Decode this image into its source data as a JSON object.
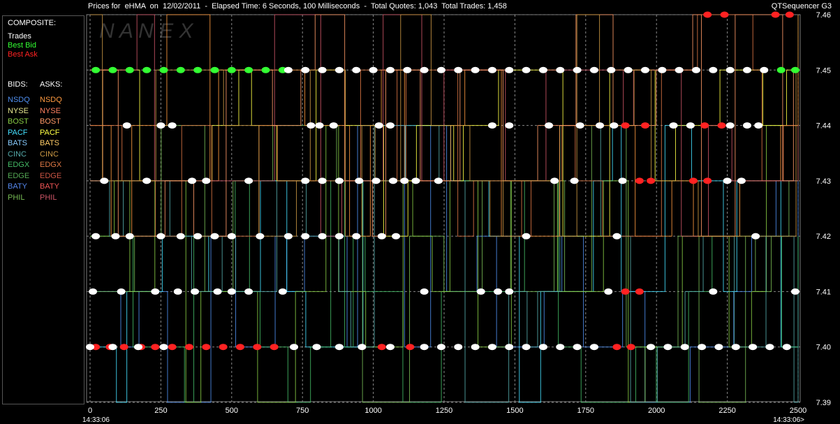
{
  "header": {
    "title": "Prices for  eHMA  on  12/02/2011  -  Elapsed Time: 6 Seconds, 100 Milliseconds  -  Total Quotes: 1,043  Total Trades: 1,458",
    "brand": "QTSequencer G3",
    "watermark": "N A N E X"
  },
  "legend": {
    "composite_heading": "COMPOSITE:",
    "composite": [
      {
        "label": "Trades",
        "color": "#ffffff"
      },
      {
        "label": "Best Bid",
        "color": "#33ff33"
      },
      {
        "label": "Best Ask",
        "color": "#ff2222"
      }
    ],
    "bids_heading": "BIDS:",
    "asks_heading": "ASKS:",
    "exchanges": [
      {
        "bid": "NSDQ",
        "ask": "NSDQ",
        "bid_color": "#4f8ff0",
        "ask_color": "#ff9a40"
      },
      {
        "bid": "NYSE",
        "ask": "NYSE",
        "bid_color": "#e8e890",
        "ask_color": "#ff8060"
      },
      {
        "bid": "BOST",
        "ask": "BOST",
        "bid_color": "#88cc44",
        "ask_color": "#ff9966"
      },
      {
        "bid": "PACF",
        "ask": "PACF",
        "bid_color": "#44e0ff",
        "ask_color": "#ffff44"
      },
      {
        "bid": "BATS",
        "ask": "BATS",
        "bid_color": "#88ccff",
        "ask_color": "#ffcc66"
      },
      {
        "bid": "CINC",
        "ask": "CINC",
        "bid_color": "#55aaaa",
        "ask_color": "#cc9944"
      },
      {
        "bid": "EDGX",
        "ask": "EDGX",
        "bid_color": "#44bb66",
        "ask_color": "#dd7744"
      },
      {
        "bid": "EDGE",
        "ask": "EDGE",
        "bid_color": "#55aa55",
        "ask_color": "#cc5544"
      },
      {
        "bid": "BATY",
        "ask": "BATY",
        "bid_color": "#5588ee",
        "ask_color": "#ee5555"
      },
      {
        "bid": "PHIL",
        "ask": "PHIL",
        "bid_color": "#77bb55",
        "ask_color": "#cc5566"
      }
    ]
  },
  "chart_data": {
    "type": "scatter",
    "x_ticks": [
      "0",
      "250",
      "500",
      "750",
      "1000",
      "1250",
      "1500",
      "1750",
      "2000",
      "2250",
      "2500"
    ],
    "x_tick_values": [
      0,
      250,
      500,
      750,
      1000,
      1250,
      1500,
      1750,
      2000,
      2250,
      2500
    ],
    "y_ticks": [
      "7.46",
      "7.45",
      "7.44",
      "7.43",
      "7.42",
      "7.41",
      "7.40",
      "7.39"
    ],
    "y_tick_values": [
      7.46,
      7.45,
      7.44,
      7.43,
      7.42,
      7.41,
      7.4,
      7.39
    ],
    "xlim": [
      0,
      2500
    ],
    "ylim": [
      7.39,
      7.46
    ],
    "x_start_time": "14:33:06",
    "x_end_time": "14:33:06>",
    "grid": true,
    "series": [
      {
        "name": "Best Bid",
        "color": "#33ff33",
        "points": [
          [
            20,
            7.45
          ],
          [
            80,
            7.45
          ],
          [
            140,
            7.45
          ],
          [
            200,
            7.45
          ],
          [
            260,
            7.45
          ],
          [
            320,
            7.45
          ],
          [
            380,
            7.45
          ],
          [
            440,
            7.45
          ],
          [
            500,
            7.45
          ],
          [
            560,
            7.45
          ],
          [
            620,
            7.45
          ],
          [
            680,
            7.45
          ],
          [
            2440,
            7.45
          ],
          [
            2490,
            7.45
          ]
        ]
      },
      {
        "name": "Best Ask",
        "color": "#ff2222",
        "points": [
          [
            20,
            7.4
          ],
          [
            70,
            7.4
          ],
          [
            120,
            7.4
          ],
          [
            180,
            7.4
          ],
          [
            230,
            7.4
          ],
          [
            290,
            7.4
          ],
          [
            350,
            7.4
          ],
          [
            410,
            7.4
          ],
          [
            470,
            7.4
          ],
          [
            530,
            7.4
          ],
          [
            590,
            7.4
          ],
          [
            650,
            7.4
          ],
          [
            1030,
            7.4
          ],
          [
            1130,
            7.4
          ],
          [
            1940,
            7.43
          ],
          [
            1980,
            7.43
          ],
          [
            1890,
            7.44
          ],
          [
            1960,
            7.44
          ],
          [
            1890,
            7.41
          ],
          [
            1940,
            7.41
          ],
          [
            2170,
            7.44
          ],
          [
            2230,
            7.44
          ],
          [
            2130,
            7.43
          ],
          [
            2180,
            7.43
          ],
          [
            2180,
            7.46
          ],
          [
            2240,
            7.46
          ],
          [
            2420,
            7.46
          ],
          [
            2470,
            7.46
          ],
          [
            1860,
            7.4
          ],
          [
            1910,
            7.4
          ]
        ]
      },
      {
        "name": "Trades",
        "color": "#ffffff",
        "points": [
          [
            700,
            7.45
          ],
          [
            760,
            7.45
          ],
          [
            820,
            7.45
          ],
          [
            880,
            7.45
          ],
          [
            940,
            7.45
          ],
          [
            1000,
            7.45
          ],
          [
            1060,
            7.45
          ],
          [
            1120,
            7.45
          ],
          [
            1180,
            7.45
          ],
          [
            1240,
            7.45
          ],
          [
            1300,
            7.45
          ],
          [
            1360,
            7.45
          ],
          [
            1420,
            7.45
          ],
          [
            1480,
            7.45
          ],
          [
            1540,
            7.45
          ],
          [
            1600,
            7.45
          ],
          [
            1660,
            7.45
          ],
          [
            1720,
            7.45
          ],
          [
            1780,
            7.45
          ],
          [
            1840,
            7.45
          ],
          [
            1900,
            7.45
          ],
          [
            1960,
            7.45
          ],
          [
            2020,
            7.45
          ],
          [
            2080,
            7.45
          ],
          [
            2140,
            7.45
          ],
          [
            2200,
            7.45
          ],
          [
            2260,
            7.45
          ],
          [
            2320,
            7.45
          ],
          [
            2380,
            7.45
          ],
          [
            130,
            7.44
          ],
          [
            250,
            7.44
          ],
          [
            290,
            7.44
          ],
          [
            780,
            7.44
          ],
          [
            810,
            7.44
          ],
          [
            860,
            7.44
          ],
          [
            1020,
            7.44
          ],
          [
            1060,
            7.44
          ],
          [
            1420,
            7.44
          ],
          [
            1480,
            7.44
          ],
          [
            1620,
            7.44
          ],
          [
            1730,
            7.44
          ],
          [
            1800,
            7.44
          ],
          [
            1850,
            7.44
          ],
          [
            2060,
            7.44
          ],
          [
            2120,
            7.44
          ],
          [
            2260,
            7.44
          ],
          [
            2320,
            7.44
          ],
          [
            2360,
            7.44
          ],
          [
            50,
            7.43
          ],
          [
            200,
            7.43
          ],
          [
            360,
            7.43
          ],
          [
            410,
            7.43
          ],
          [
            560,
            7.43
          ],
          [
            760,
            7.43
          ],
          [
            820,
            7.43
          ],
          [
            880,
            7.43
          ],
          [
            950,
            7.43
          ],
          [
            1010,
            7.43
          ],
          [
            1070,
            7.43
          ],
          [
            1110,
            7.43
          ],
          [
            1150,
            7.43
          ],
          [
            1230,
            7.43
          ],
          [
            1640,
            7.43
          ],
          [
            1710,
            7.43
          ],
          [
            1880,
            7.43
          ],
          [
            2250,
            7.43
          ],
          [
            2300,
            7.43
          ],
          [
            20,
            7.42
          ],
          [
            90,
            7.42
          ],
          [
            140,
            7.42
          ],
          [
            250,
            7.42
          ],
          [
            320,
            7.42
          ],
          [
            380,
            7.42
          ],
          [
            440,
            7.42
          ],
          [
            500,
            7.42
          ],
          [
            600,
            7.42
          ],
          [
            700,
            7.42
          ],
          [
            760,
            7.42
          ],
          [
            820,
            7.42
          ],
          [
            880,
            7.42
          ],
          [
            940,
            7.42
          ],
          [
            1030,
            7.42
          ],
          [
            1080,
            7.42
          ],
          [
            1540,
            7.42
          ],
          [
            1860,
            7.42
          ],
          [
            2350,
            7.42
          ],
          [
            10,
            7.41
          ],
          [
            110,
            7.41
          ],
          [
            230,
            7.41
          ],
          [
            310,
            7.41
          ],
          [
            370,
            7.41
          ],
          [
            450,
            7.41
          ],
          [
            500,
            7.41
          ],
          [
            560,
            7.41
          ],
          [
            680,
            7.41
          ],
          [
            1180,
            7.41
          ],
          [
            1380,
            7.41
          ],
          [
            1440,
            7.41
          ],
          [
            1480,
            7.41
          ],
          [
            1830,
            7.41
          ],
          [
            2200,
            7.41
          ],
          [
            2490,
            7.41
          ],
          [
            0,
            7.4
          ],
          [
            80,
            7.4
          ],
          [
            170,
            7.4
          ],
          [
            260,
            7.4
          ],
          [
            720,
            7.4
          ],
          [
            800,
            7.4
          ],
          [
            880,
            7.4
          ],
          [
            960,
            7.4
          ],
          [
            1060,
            7.4
          ],
          [
            1180,
            7.4
          ],
          [
            1240,
            7.4
          ],
          [
            1300,
            7.4
          ],
          [
            1360,
            7.4
          ],
          [
            1420,
            7.4
          ],
          [
            1480,
            7.4
          ],
          [
            1540,
            7.4
          ],
          [
            1600,
            7.4
          ],
          [
            1660,
            7.4
          ],
          [
            1720,
            7.4
          ],
          [
            1780,
            7.4
          ],
          [
            1980,
            7.4
          ],
          [
            2040,
            7.4
          ],
          [
            2100,
            7.4
          ],
          [
            2160,
            7.4
          ],
          [
            2220,
            7.4
          ],
          [
            2280,
            7.4
          ],
          [
            2340,
            7.4
          ],
          [
            2400,
            7.4
          ],
          [
            2460,
            7.4
          ]
        ]
      }
    ]
  }
}
